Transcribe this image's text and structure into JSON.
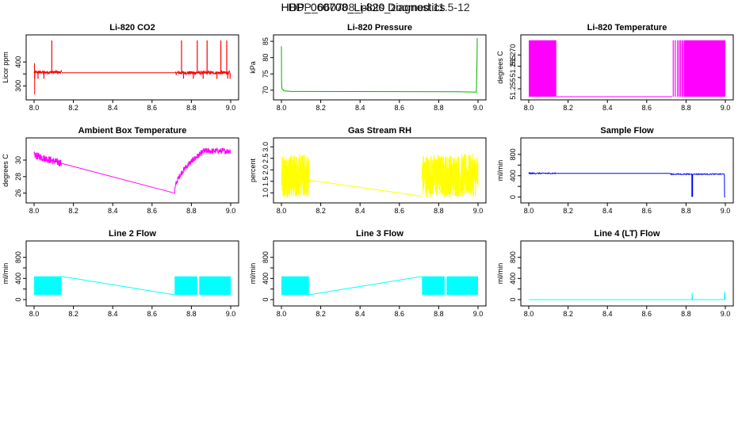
{
  "page": {
    "title": "HDP_060708_Li-820 Diagnostics",
    "title_overlay": "HDP_060708_plots_zoomed 11.5-12"
  },
  "chart_data": [
    {
      "id": "co2",
      "type": "line",
      "title": "Li-820 CO2",
      "ylabel": "Licor ppm",
      "color": "#ff0000",
      "xlim": [
        8.0,
        9.0
      ],
      "ylim": [
        255,
        500
      ],
      "xticks": [
        8.0,
        8.2,
        8.4,
        8.6,
        8.8,
        9.0
      ],
      "yticks": [
        300,
        350,
        400
      ],
      "xtick_labels": [
        "8.0",
        "8.2",
        "8.4",
        "8.6",
        "8.8",
        "9.0"
      ],
      "ytick_labels": [
        "300",
        "",
        "400"
      ],
      "segments": [
        {
          "kind": "noise",
          "x0": 8.0,
          "x1": 8.14,
          "center": 357,
          "amp": 6,
          "n": 120
        },
        {
          "kind": "line",
          "points": [
            [
              8.14,
              355
            ],
            [
              8.72,
              355
            ]
          ]
        },
        {
          "kind": "noise",
          "x0": 8.72,
          "x1": 8.995,
          "center": 355,
          "amp": 7,
          "n": 200
        },
        {
          "kind": "spikes",
          "x": [
            8.09,
            8.75,
            8.83,
            8.88,
            8.95,
            8.98
          ],
          "from": 355,
          "to": 490
        },
        {
          "kind": "spikes",
          "x": [
            8.003,
            8.02,
            8.05,
            8.76,
            8.81,
            8.86,
            8.93,
            8.985,
            8.997
          ],
          "from": 355,
          "to": 330
        },
        {
          "kind": "line",
          "points": [
            [
              8.002,
              355
            ],
            [
              8.002,
              395
            ]
          ]
        },
        {
          "kind": "line",
          "points": [
            [
              8.003,
              355
            ],
            [
              8.003,
              265
            ]
          ]
        }
      ]
    },
    {
      "id": "pressure",
      "type": "line",
      "title": "Li-820 Pressure",
      "ylabel": "kPa",
      "color": "#00b000",
      "xlim": [
        8.0,
        9.0
      ],
      "ylim": [
        68,
        86
      ],
      "xticks": [
        8.0,
        8.2,
        8.4,
        8.6,
        8.8,
        9.0
      ],
      "yticks": [
        70,
        75,
        80,
        85
      ],
      "xtick_labels": [
        "8.0",
        "8.2",
        "8.4",
        "8.6",
        "8.8",
        "9.0"
      ],
      "ytick_labels": [
        "70",
        "75",
        "80",
        "85"
      ],
      "segments": [
        {
          "kind": "line",
          "points": [
            [
              8.0,
              83.5
            ],
            [
              8.001,
              72
            ],
            [
              8.003,
              70.5
            ],
            [
              8.012,
              69.8
            ],
            [
              8.05,
              69.6
            ],
            [
              8.9,
              69.5
            ],
            [
              8.992,
              69.4
            ],
            [
              8.995,
              80
            ],
            [
              8.996,
              86
            ]
          ]
        }
      ]
    },
    {
      "id": "temperature",
      "type": "line",
      "title": "Li-820 Temperature",
      "ylabel": "degrees C",
      "color": "#ff00ff",
      "xlim": [
        8.0,
        9.0
      ],
      "ylim": [
        51.2515,
        51.2775
      ],
      "xticks": [
        8.0,
        8.2,
        8.4,
        8.6,
        8.8,
        9.0
      ],
      "yticks": [
        51.255,
        51.26,
        51.265,
        51.27
      ],
      "xtick_labels": [
        "8.0",
        "8.2",
        "8.4",
        "8.6",
        "8.8",
        "9.0"
      ],
      "ytick_labels": [
        "51.255",
        "",
        "51.265",
        "51.270"
      ],
      "segments": [
        {
          "kind": "band",
          "x0": 8.0,
          "x1": 8.14,
          "lo": 51.2515,
          "hi": 51.2765
        },
        {
          "kind": "line",
          "points": [
            [
              8.14,
              51.2515
            ],
            [
              8.73,
              51.2515
            ]
          ]
        },
        {
          "kind": "spikes",
          "x": [
            8.735,
            8.745,
            8.757,
            8.765,
            8.772,
            8.78,
            8.786
          ],
          "from": 51.2515,
          "to": 51.2765
        },
        {
          "kind": "band",
          "x0": 8.79,
          "x1": 9.0,
          "lo": 51.2515,
          "hi": 51.2765
        }
      ]
    },
    {
      "id": "ambient",
      "type": "line",
      "title": "Ambient Box Temperature",
      "ylabel": "degrees C",
      "color": "#ff00ff",
      "xlim": [
        8.0,
        9.0
      ],
      "ylim": [
        25.2,
        32.3
      ],
      "xticks": [
        8.0,
        8.2,
        8.4,
        8.6,
        8.8,
        9.0
      ],
      "yticks": [
        26,
        28,
        30
      ],
      "xtick_labels": [
        "8.0",
        "8.2",
        "8.4",
        "8.6",
        "8.8",
        "9.0"
      ],
      "ytick_labels": [
        "26",
        "28",
        "30"
      ],
      "segments": [
        {
          "kind": "noise",
          "x0": 8.0,
          "x1": 8.14,
          "center": 30.6,
          "amp": 0.45,
          "n": 140,
          "slope": -1.0
        },
        {
          "kind": "line",
          "points": [
            [
              8.14,
              29.6
            ],
            [
              8.715,
              26.0
            ]
          ]
        },
        {
          "kind": "noise",
          "x0": 8.715,
          "x1": 8.86,
          "center": 26.0,
          "amp": 0.35,
          "n": 140,
          "curve_to": 31.0
        },
        {
          "kind": "noise",
          "x0": 8.86,
          "x1": 9.0,
          "center": 31.1,
          "amp": 0.35,
          "n": 120
        }
      ]
    },
    {
      "id": "rh",
      "type": "line",
      "title": "Gas Stream RH",
      "ylabel": "percent",
      "color": "#ffff00",
      "xlim": [
        8.0,
        9.0
      ],
      "ylim": [
        0.7,
        3.25
      ],
      "xticks": [
        8.0,
        8.2,
        8.4,
        8.6,
        8.8,
        9.0
      ],
      "yticks": [
        1.0,
        1.5,
        2.0,
        2.5,
        3.0
      ],
      "xtick_labels": [
        "8.0",
        "8.2",
        "8.4",
        "8.6",
        "8.8",
        "9.0"
      ],
      "ytick_labels": [
        "1.0",
        "1.5",
        "2.0",
        "2.5",
        "3.0"
      ],
      "segments": [
        {
          "kind": "noise",
          "x0": 8.0,
          "x1": 8.14,
          "center": 1.75,
          "amp": 0.95,
          "n": 260
        },
        {
          "kind": "line",
          "points": [
            [
              8.14,
              1.55
            ],
            [
              8.715,
              0.85
            ]
          ]
        },
        {
          "kind": "noise",
          "x0": 8.715,
          "x1": 9.0,
          "center": 1.75,
          "amp": 0.95,
          "n": 420
        }
      ]
    },
    {
      "id": "sample",
      "type": "line",
      "title": "Sample Flow",
      "ylabel": "ml/min",
      "color": "#0000ff",
      "xlim": [
        8.0,
        9.0
      ],
      "ylim": [
        -50,
        1050
      ],
      "xticks": [
        8.0,
        8.2,
        8.4,
        8.6,
        8.8,
        9.0
      ],
      "yticks": [
        0,
        200,
        400,
        600,
        800
      ],
      "xtick_labels": [
        "8.0",
        "8.2",
        "8.4",
        "8.6",
        "8.8",
        "9.0"
      ],
      "ytick_labels": [
        "0",
        "",
        "400",
        "",
        "800"
      ],
      "segments": [
        {
          "kind": "noise",
          "x0": 8.0,
          "x1": 8.14,
          "center": 445,
          "amp": 10,
          "n": 80
        },
        {
          "kind": "line",
          "points": [
            [
              8.14,
              445
            ],
            [
              8.72,
              445
            ]
          ]
        },
        {
          "kind": "noise",
          "x0": 8.72,
          "x1": 8.995,
          "center": 430,
          "amp": 10,
          "n": 120
        },
        {
          "kind": "spikes",
          "x": [
            8.83,
            8.833
          ],
          "from": 430,
          "to": 5
        },
        {
          "kind": "line",
          "points": [
            [
              8.995,
              430
            ],
            [
              8.996,
              5
            ],
            [
              9.0,
              5
            ]
          ]
        }
      ]
    },
    {
      "id": "line2",
      "type": "line",
      "title": "Line 2 Flow",
      "ylabel": "ml/min",
      "color": "#00ffff",
      "xlim": [
        8.0,
        9.0
      ],
      "ylim": [
        -60,
        1050
      ],
      "xticks": [
        8.0,
        8.2,
        8.4,
        8.6,
        8.8,
        9.0
      ],
      "yticks": [
        0,
        200,
        400,
        600,
        800
      ],
      "xtick_labels": [
        "8.0",
        "8.2",
        "8.4",
        "8.6",
        "8.8",
        "9.0"
      ],
      "ytick_labels": [
        "0",
        "",
        "400",
        "",
        "800"
      ],
      "segments": [
        {
          "kind": "band",
          "x0": 8.0,
          "x1": 8.14,
          "lo": 90,
          "hi": 440
        },
        {
          "kind": "line",
          "points": [
            [
              8.14,
              440
            ],
            [
              8.715,
              90
            ]
          ]
        },
        {
          "kind": "band",
          "x0": 8.715,
          "x1": 8.83,
          "lo": 90,
          "hi": 440
        },
        {
          "kind": "band",
          "x0": 8.84,
          "x1": 9.0,
          "lo": 90,
          "hi": 440
        }
      ]
    },
    {
      "id": "line3",
      "type": "line",
      "title": "Line 3 Flow",
      "ylabel": "ml/min",
      "color": "#00ffff",
      "xlim": [
        8.0,
        9.0
      ],
      "ylim": [
        -60,
        1050
      ],
      "xticks": [
        8.0,
        8.2,
        8.4,
        8.6,
        8.8,
        9.0
      ],
      "yticks": [
        0,
        200,
        400,
        600,
        800
      ],
      "xtick_labels": [
        "8.0",
        "8.2",
        "8.4",
        "8.6",
        "8.8",
        "9.0"
      ],
      "ytick_labels": [
        "0",
        "",
        "400",
        "",
        "800"
      ],
      "segments": [
        {
          "kind": "band",
          "x0": 8.0,
          "x1": 8.14,
          "lo": 90,
          "hi": 440
        },
        {
          "kind": "line",
          "points": [
            [
              8.14,
              90
            ],
            [
              8.715,
              440
            ]
          ]
        },
        {
          "kind": "band",
          "x0": 8.715,
          "x1": 8.83,
          "lo": 90,
          "hi": 440
        },
        {
          "kind": "band",
          "x0": 8.84,
          "x1": 9.0,
          "lo": 90,
          "hi": 440
        }
      ]
    },
    {
      "id": "line4",
      "type": "line",
      "title": "Line 4 (LT) Flow",
      "ylabel": "ml/min",
      "color": "#00ffff",
      "xlim": [
        8.0,
        9.0
      ],
      "ylim": [
        -60,
        1050
      ],
      "xticks": [
        8.0,
        8.2,
        8.4,
        8.6,
        8.8,
        9.0
      ],
      "yticks": [
        0,
        200,
        400,
        600,
        800
      ],
      "xtick_labels": [
        "8.0",
        "8.2",
        "8.4",
        "8.6",
        "8.8",
        "9.0"
      ],
      "ytick_labels": [
        "0",
        "",
        "400",
        "",
        "800"
      ],
      "segments": [
        {
          "kind": "line",
          "points": [
            [
              8.0,
              0
            ],
            [
              8.83,
              0
            ],
            [
              8.831,
              130
            ],
            [
              8.833,
              0
            ],
            [
              8.995,
              0
            ],
            [
              8.996,
              150
            ],
            [
              9.0,
              0
            ]
          ]
        }
      ]
    }
  ]
}
